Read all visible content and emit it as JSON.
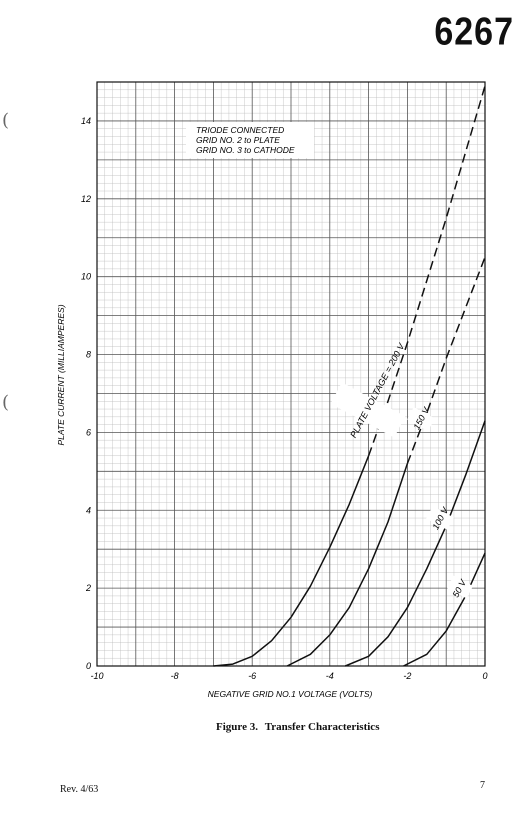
{
  "header": {
    "tube_number": "6267"
  },
  "caption": {
    "figure_label": "Figure 3.",
    "title": "Transfer Characteristics"
  },
  "footer": {
    "revision": "Rev. 4/63",
    "page_number": "7"
  },
  "chart_data": {
    "type": "line",
    "title": "",
    "annotation": [
      "TRIODE CONNECTED",
      "GRID NO. 2 to PLATE",
      "GRID NO. 3 to CATHODE"
    ],
    "xlabel": "NEGATIVE GRID NO.1 VOLTAGE (VOLTS)",
    "ylabel": "PLATE CURRENT (MILLIAMPERES)",
    "xlim": [
      -10,
      0
    ],
    "ylim": [
      0,
      15
    ],
    "xticks": [
      -10,
      -8,
      -6,
      -4,
      -2,
      0
    ],
    "yticks": [
      0,
      2,
      4,
      6,
      8,
      10,
      12,
      14
    ],
    "grid": true,
    "series": [
      {
        "name": "PLATE VOLTAGE = 200 V",
        "x": [
          -7.0,
          -6.5,
          -6.0,
          -5.5,
          -5.0,
          -4.5,
          -4.0,
          -3.5,
          -3.0
        ],
        "y": [
          0.0,
          0.05,
          0.25,
          0.65,
          1.25,
          2.05,
          3.05,
          4.15,
          5.4
        ],
        "dashed_x": [
          -3.0,
          -2.5,
          -2.0,
          -1.5,
          -1.0,
          -0.5,
          0.0
        ],
        "dashed_y": [
          5.4,
          6.8,
          8.3,
          9.9,
          11.5,
          13.2,
          14.9
        ]
      },
      {
        "name": "150 V",
        "x": [
          -5.1,
          -4.5,
          -4.0,
          -3.5,
          -3.0,
          -2.5,
          -2.0
        ],
        "y": [
          0.0,
          0.3,
          0.8,
          1.5,
          2.5,
          3.7,
          5.2
        ],
        "dashed_x": [
          -2.0,
          -1.5,
          -1.0,
          -0.5,
          0.0
        ],
        "dashed_y": [
          5.2,
          6.5,
          7.9,
          9.2,
          10.5
        ]
      },
      {
        "name": "100 V",
        "x": [
          -3.6,
          -3.0,
          -2.5,
          -2.0,
          -1.5,
          -1.0,
          -0.5,
          0.0
        ],
        "y": [
          0.0,
          0.25,
          0.75,
          1.5,
          2.5,
          3.6,
          4.9,
          6.3
        ],
        "dashed_x": [
          0.0
        ],
        "dashed_y": [
          6.3
        ]
      },
      {
        "name": "50 V",
        "x": [
          -2.1,
          -1.5,
          -1.0,
          -0.5,
          0.0
        ],
        "y": [
          0.0,
          0.3,
          0.9,
          1.8,
          2.9
        ],
        "dashed_x": [
          0.0
        ],
        "dashed_y": [
          2.9
        ]
      }
    ]
  }
}
